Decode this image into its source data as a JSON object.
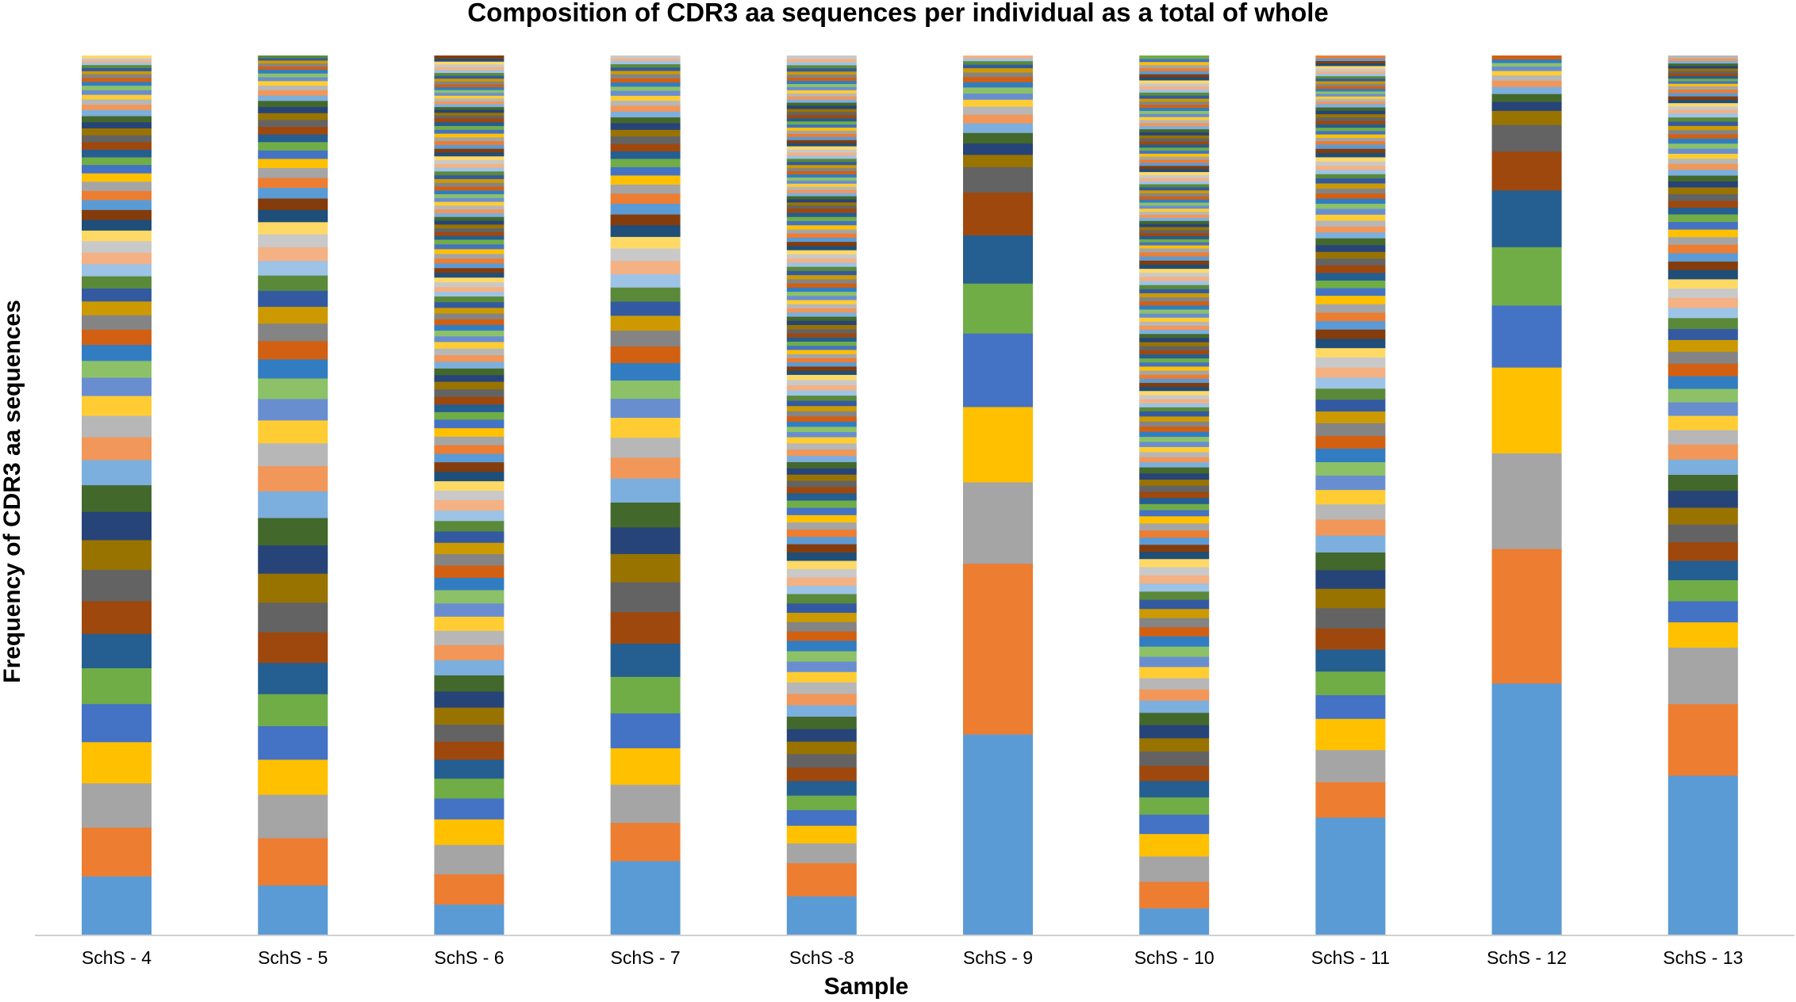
{
  "chart_data": {
    "type": "bar",
    "stacked": true,
    "normalized": true,
    "title": "Composition of CDR3 aa sequences per individual as a total of whole",
    "xlabel": "Sample",
    "ylabel": "Frequency of CDR3 aa sequences",
    "ylim": [
      0,
      1
    ],
    "grid": false,
    "legend": "none",
    "palette": [
      "#5b9bd5",
      "#ed7d31",
      "#a5a5a5",
      "#ffc000",
      "#4472c4",
      "#70ad47",
      "#255e91",
      "#9e480e",
      "#636363",
      "#997300",
      "#264478",
      "#43682b",
      "#7cafdd",
      "#f1975a",
      "#b7b7b7",
      "#ffcd33",
      "#698ed0",
      "#8cc168",
      "#327dc2",
      "#d26012",
      "#848484",
      "#cc9a00",
      "#335aa1",
      "#5a8a39",
      "#9dc3e6",
      "#f4b183",
      "#c9c9c9",
      "#ffd966",
      "#1f4e79",
      "#843c0c"
    ],
    "categories": [
      "SchS - 4",
      "SchS - 5",
      "SchS - 6",
      "SchS - 7",
      "SchS -8",
      "SchS - 9",
      "SchS - 10",
      "SchS - 11",
      "SchS - 12",
      "SchS - 13"
    ],
    "series_note": "Each bar is composed of many distinct CDR3 aa sequences (stack segments, bottom to top); values are fractions of the sample total.",
    "bar_segments": [
      [
        0.078,
        0.064,
        0.058,
        0.054,
        0.05,
        0.047,
        0.045,
        0.043,
        0.041,
        0.039,
        0.037,
        0.035,
        0.033,
        0.03,
        0.028,
        0.026,
        0.024,
        0.022,
        0.021,
        0.02,
        0.019,
        0.018,
        0.017,
        0.016,
        0.016,
        0.015,
        0.015,
        0.014,
        0.014,
        0.013,
        0.013,
        0.012,
        0.012,
        0.011,
        0.011,
        0.01,
        0.01,
        0.01,
        0.009,
        0.009,
        0.008,
        0.008,
        0.008,
        0.007,
        0.007,
        0.006,
        0.006,
        0.006,
        0.005,
        0.005,
        0.005,
        0.004,
        0.004,
        0.004,
        0.003,
        0.003,
        0.003,
        0.003
      ],
      [
        0.066,
        0.062,
        0.057,
        0.046,
        0.044,
        0.042,
        0.041,
        0.04,
        0.039,
        0.038,
        0.037,
        0.036,
        0.035,
        0.033,
        0.03,
        0.03,
        0.028,
        0.027,
        0.025,
        0.024,
        0.023,
        0.022,
        0.021,
        0.02,
        0.019,
        0.018,
        0.017,
        0.016,
        0.016,
        0.015,
        0.014,
        0.013,
        0.013,
        0.012,
        0.011,
        0.011,
        0.01,
        0.01,
        0.009,
        0.009,
        0.008,
        0.008,
        0.007,
        0.007,
        0.006,
        0.006,
        0.005,
        0.005,
        0.005,
        0.004,
        0.004,
        0.004,
        0.003,
        0.003
      ],
      [
        0.033,
        0.032,
        0.031,
        0.027,
        0.022,
        0.021,
        0.02,
        0.019,
        0.018,
        0.018,
        0.017,
        0.017,
        0.016,
        0.016,
        0.015,
        0.015,
        0.014,
        0.014,
        0.013,
        0.013,
        0.012,
        0.012,
        0.012,
        0.011,
        0.011,
        0.011,
        0.01,
        0.01,
        0.01,
        0.01,
        0.009,
        0.009,
        0.009,
        0.009,
        0.009,
        0.008,
        0.008,
        0.008,
        0.008,
        0.008,
        0.007,
        0.007,
        0.007,
        0.007,
        0.007,
        0.007,
        0.006,
        0.006,
        0.006,
        0.006,
        0.006,
        0.006,
        0.006,
        0.006,
        0.005,
        0.005,
        0.005,
        0.005,
        0.005,
        0.005,
        0.005,
        0.005,
        0.005,
        0.005,
        0.005,
        0.005,
        0.004,
        0.004,
        0.004,
        0.004,
        0.004,
        0.004,
        0.004,
        0.004,
        0.004,
        0.004,
        0.004,
        0.004,
        0.004,
        0.004,
        0.004,
        0.004,
        0.004,
        0.004,
        0.004,
        0.004,
        0.004,
        0.004,
        0.004,
        0.004,
        0.004,
        0.004,
        0.004,
        0.004,
        0.004,
        0.004,
        0.004,
        0.004,
        0.003,
        0.003,
        0.003,
        0.003,
        0.003,
        0.003,
        0.003,
        0.003,
        0.003,
        0.003,
        0.003,
        0.003,
        0.003,
        0.003,
        0.003,
        0.003,
        0.003,
        0.003,
        0.003,
        0.003,
        0.003,
        0.003
      ],
      [
        0.09,
        0.046,
        0.046,
        0.044,
        0.042,
        0.044,
        0.04,
        0.038,
        0.036,
        0.034,
        0.032,
        0.03,
        0.029,
        0.025,
        0.024,
        0.024,
        0.023,
        0.022,
        0.021,
        0.02,
        0.019,
        0.018,
        0.017,
        0.017,
        0.016,
        0.016,
        0.015,
        0.014,
        0.014,
        0.013,
        0.013,
        0.012,
        0.011,
        0.011,
        0.01,
        0.01,
        0.009,
        0.009,
        0.009,
        0.008,
        0.008,
        0.007,
        0.007,
        0.007,
        0.006,
        0.006,
        0.006,
        0.005,
        0.005,
        0.005,
        0.005,
        0.004,
        0.004,
        0.004,
        0.004,
        0.003,
        0.003
      ],
      [
        0.038,
        0.032,
        0.019,
        0.017,
        0.015,
        0.014,
        0.014,
        0.013,
        0.013,
        0.012,
        0.012,
        0.012,
        0.011,
        0.011,
        0.011,
        0.01,
        0.01,
        0.01,
        0.01,
        0.009,
        0.009,
        0.009,
        0.009,
        0.009,
        0.008,
        0.008,
        0.008,
        0.008,
        0.008,
        0.008,
        0.007,
        0.007,
        0.007,
        0.007,
        0.007,
        0.007,
        0.007,
        0.006,
        0.006,
        0.006,
        0.006,
        0.006,
        0.006,
        0.006,
        0.006,
        0.006,
        0.005,
        0.005,
        0.005,
        0.005,
        0.005,
        0.005,
        0.005,
        0.005,
        0.005,
        0.005,
        0.005,
        0.005,
        0.004,
        0.004,
        0.004,
        0.004,
        0.004,
        0.004,
        0.004,
        0.004,
        0.004,
        0.004,
        0.004,
        0.004,
        0.004,
        0.004,
        0.004,
        0.004,
        0.004,
        0.004,
        0.004,
        0.004,
        0.004,
        0.004,
        0.004,
        0.004,
        0.004,
        0.004,
        0.004,
        0.004,
        0.004,
        0.004,
        0.004,
        0.004,
        0.004,
        0.004,
        0.004,
        0.004,
        0.004,
        0.004,
        0.004,
        0.004,
        0.003,
        0.003,
        0.003,
        0.003,
        0.003,
        0.003,
        0.003,
        0.003,
        0.003,
        0.003,
        0.003,
        0.003,
        0.003,
        0.003,
        0.003,
        0.003,
        0.003,
        0.003,
        0.003,
        0.003,
        0.003,
        0.003,
        0.003,
        0.003,
        0.003,
        0.003,
        0.003,
        0.003,
        0.003,
        0.003,
        0.003,
        0.003,
        0.003,
        0.003,
        0.003,
        0.003,
        0.003,
        0.003,
        0.003,
        0.003,
        0.003,
        0.003,
        0.003,
        0.003,
        0.003,
        0.003,
        0.003,
        0.003,
        0.003
      ],
      [
        0.23,
        0.195,
        0.093,
        0.086,
        0.084,
        0.057,
        0.055,
        0.049,
        0.029,
        0.014,
        0.013,
        0.012,
        0.011,
        0.01,
        0.009,
        0.008,
        0.007,
        0.007,
        0.006,
        0.006,
        0.005,
        0.005,
        0.004,
        0.004,
        0.003,
        0.003
      ],
      [
        0.027,
        0.026,
        0.025,
        0.022,
        0.019,
        0.017,
        0.016,
        0.015,
        0.014,
        0.013,
        0.013,
        0.012,
        0.012,
        0.011,
        0.011,
        0.011,
        0.01,
        0.01,
        0.01,
        0.009,
        0.009,
        0.009,
        0.009,
        0.008,
        0.008,
        0.008,
        0.008,
        0.008,
        0.007,
        0.007,
        0.007,
        0.007,
        0.007,
        0.007,
        0.006,
        0.006,
        0.006,
        0.006,
        0.006,
        0.006,
        0.006,
        0.006,
        0.005,
        0.005,
        0.005,
        0.005,
        0.005,
        0.005,
        0.005,
        0.005,
        0.005,
        0.005,
        0.005,
        0.004,
        0.004,
        0.004,
        0.004,
        0.004,
        0.004,
        0.004,
        0.004,
        0.004,
        0.004,
        0.004,
        0.004,
        0.004,
        0.004,
        0.004,
        0.004,
        0.004,
        0.004,
        0.004,
        0.004,
        0.004,
        0.004,
        0.004,
        0.004,
        0.004,
        0.004,
        0.004,
        0.004,
        0.004,
        0.004,
        0.004,
        0.004,
        0.004,
        0.004,
        0.004,
        0.004,
        0.004,
        0.004,
        0.004,
        0.004,
        0.003,
        0.003,
        0.003,
        0.003,
        0.003,
        0.003,
        0.003,
        0.003,
        0.003,
        0.003,
        0.003,
        0.003,
        0.003,
        0.003,
        0.003,
        0.003,
        0.003,
        0.003,
        0.003,
        0.003,
        0.003,
        0.003,
        0.003,
        0.003,
        0.003,
        0.003,
        0.003,
        0.003,
        0.003,
        0.003,
        0.003,
        0.003,
        0.003,
        0.003,
        0.003,
        0.003,
        0.003,
        0.003,
        0.003,
        0.003,
        0.003,
        0.003,
        0.003,
        0.003,
        0.003,
        0.003,
        0.003,
        0.003,
        0.003,
        0.003,
        0.003,
        0.003,
        0.003,
        0.003,
        0.003,
        0.003,
        0.003,
        0.003,
        0.003,
        0.003,
        0.003,
        0.003,
        0.003
      ],
      [
        0.14,
        0.042,
        0.038,
        0.037,
        0.028,
        0.028,
        0.026,
        0.025,
        0.024,
        0.023,
        0.022,
        0.021,
        0.02,
        0.019,
        0.018,
        0.017,
        0.017,
        0.016,
        0.016,
        0.015,
        0.015,
        0.014,
        0.014,
        0.013,
        0.013,
        0.012,
        0.012,
        0.011,
        0.011,
        0.011,
        0.01,
        0.01,
        0.01,
        0.01,
        0.009,
        0.009,
        0.009,
        0.009,
        0.008,
        0.008,
        0.008,
        0.008,
        0.007,
        0.007,
        0.007,
        0.007,
        0.007,
        0.006,
        0.006,
        0.006,
        0.006,
        0.006,
        0.006,
        0.005,
        0.005,
        0.005,
        0.005,
        0.005,
        0.005,
        0.005,
        0.005,
        0.004,
        0.004,
        0.004,
        0.004,
        0.004,
        0.004,
        0.004,
        0.004,
        0.004,
        0.004,
        0.004,
        0.004,
        0.003,
        0.003,
        0.003,
        0.003,
        0.003,
        0.003,
        0.003,
        0.003,
        0.003,
        0.003,
        0.003,
        0.003,
        0.003,
        0.003,
        0.003,
        0.003,
        0.003,
        0.003,
        0.003
      ],
      [
        0.285,
        0.152,
        0.108,
        0.097,
        0.07,
        0.066,
        0.064,
        0.044,
        0.03,
        0.016,
        0.01,
        0.009,
        0.008,
        0.007,
        0.006,
        0.005,
        0.005,
        0.004,
        0.004,
        0.004
      ],
      [
        0.19,
        0.085,
        0.067,
        0.03,
        0.025,
        0.025,
        0.023,
        0.022,
        0.021,
        0.02,
        0.02,
        0.019,
        0.018,
        0.018,
        0.017,
        0.017,
        0.016,
        0.016,
        0.015,
        0.015,
        0.014,
        0.014,
        0.013,
        0.013,
        0.012,
        0.012,
        0.011,
        0.011,
        0.011,
        0.01,
        0.01,
        0.01,
        0.009,
        0.009,
        0.009,
        0.009,
        0.008,
        0.008,
        0.008,
        0.008,
        0.007,
        0.007,
        0.007,
        0.007,
        0.006,
        0.006,
        0.006,
        0.006,
        0.006,
        0.005,
        0.005,
        0.005,
        0.005,
        0.005,
        0.005,
        0.004,
        0.004,
        0.004,
        0.004,
        0.004,
        0.004,
        0.004,
        0.004,
        0.003,
        0.003,
        0.003,
        0.003,
        0.003,
        0.003,
        0.003,
        0.003,
        0.003,
        0.003,
        0.003,
        0.003
      ]
    ]
  }
}
